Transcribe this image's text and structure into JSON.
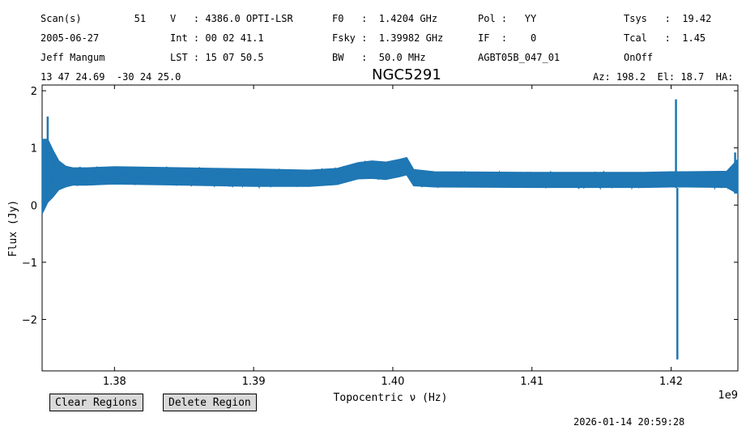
{
  "header": {
    "col1": [
      "Scan(s)         51",
      "2005-06-27",
      "Jeff Mangum",
      "13 47 24.69  -30 24 25.0"
    ],
    "col2": [
      "V   : 4386.0 OPTI-LSR",
      "Int : 00 02 41.1",
      "LST : 15 07 50.5"
    ],
    "col3": [
      "F0   :  1.4204 GHz",
      "Fsky :  1.39982 GHz",
      "BW   :  50.0 MHz"
    ],
    "col4": [
      "Pol :   YY",
      "IF  :    0",
      "AGBT05B_047_01"
    ],
    "col5": [
      "Tsys   :  19.42",
      "Tcal   :  1.45",
      "OnOff"
    ],
    "azel": "Az: 198.2  El: 18.7  HA:"
  },
  "buttons": {
    "clear": "Clear Regions",
    "delete": "Delete Region"
  },
  "timestamp": "2026-01-14 20:59:28",
  "chart_data": {
    "type": "line",
    "title": "NGC5291",
    "xlabel": "Topocentric ν (Hz)",
    "ylabel": "Flux (Jy)",
    "x_offset_label": "1e9",
    "xlim": [
      1374800000.0,
      1424800000.0
    ],
    "ylim": [
      -2.9,
      2.1
    ],
    "xticks": [
      1380000000.0,
      1390000000.0,
      1400000000.0,
      1410000000.0,
      1420000000.0
    ],
    "xtick_labels": [
      "1.38",
      "1.39",
      "1.40",
      "1.41",
      "1.42"
    ],
    "yticks": [
      2,
      1,
      0,
      -1,
      -2
    ],
    "ytick_labels": [
      "2",
      "1",
      "0",
      "−1",
      "−2"
    ],
    "color": "#1f77b4",
    "series": [
      {
        "x": [
          1374800000.0,
          1375200000.0,
          1375600000.0,
          1376000000.0,
          1376500000.0,
          1377000000.0,
          1378000000.0,
          1380000000.0,
          1385000000.0,
          1390000000.0,
          1394000000.0,
          1396000000.0,
          1397500000.0,
          1398500000.0,
          1399500000.0,
          1400500000.0,
          1401000000.0,
          1401500000.0,
          1403000000.0,
          1410000000.0,
          1418000000.0,
          1420000000.0,
          1420400000.0,
          1421000000.0,
          1424000000.0,
          1424800000.0
        ],
        "y": [
          0.5,
          0.6,
          0.55,
          0.52,
          0.5,
          0.5,
          0.5,
          0.52,
          0.5,
          0.48,
          0.47,
          0.5,
          0.6,
          0.62,
          0.6,
          0.65,
          0.68,
          0.48,
          0.45,
          0.44,
          0.44,
          0.45,
          0.45,
          0.45,
          0.45,
          0.5
        ],
        "band_halfwidth": [
          0.65,
          0.55,
          0.4,
          0.25,
          0.18,
          0.15,
          0.15,
          0.15,
          0.15,
          0.15,
          0.14,
          0.14,
          0.14,
          0.15,
          0.15,
          0.15,
          0.15,
          0.14,
          0.13,
          0.13,
          0.13,
          0.13,
          0.13,
          0.13,
          0.14,
          0.3
        ]
      }
    ],
    "spikes": [
      {
        "x": 1375200000.0,
        "ymin": 0.3,
        "ymax": 1.55
      },
      {
        "x": 1420350000.0,
        "ymin": 0.3,
        "ymax": 1.85
      },
      {
        "x": 1420450000.0,
        "ymin": -2.7,
        "ymax": 0.3
      },
      {
        "x": 1424600000.0,
        "ymin": 0.2,
        "ymax": 0.92
      }
    ]
  }
}
